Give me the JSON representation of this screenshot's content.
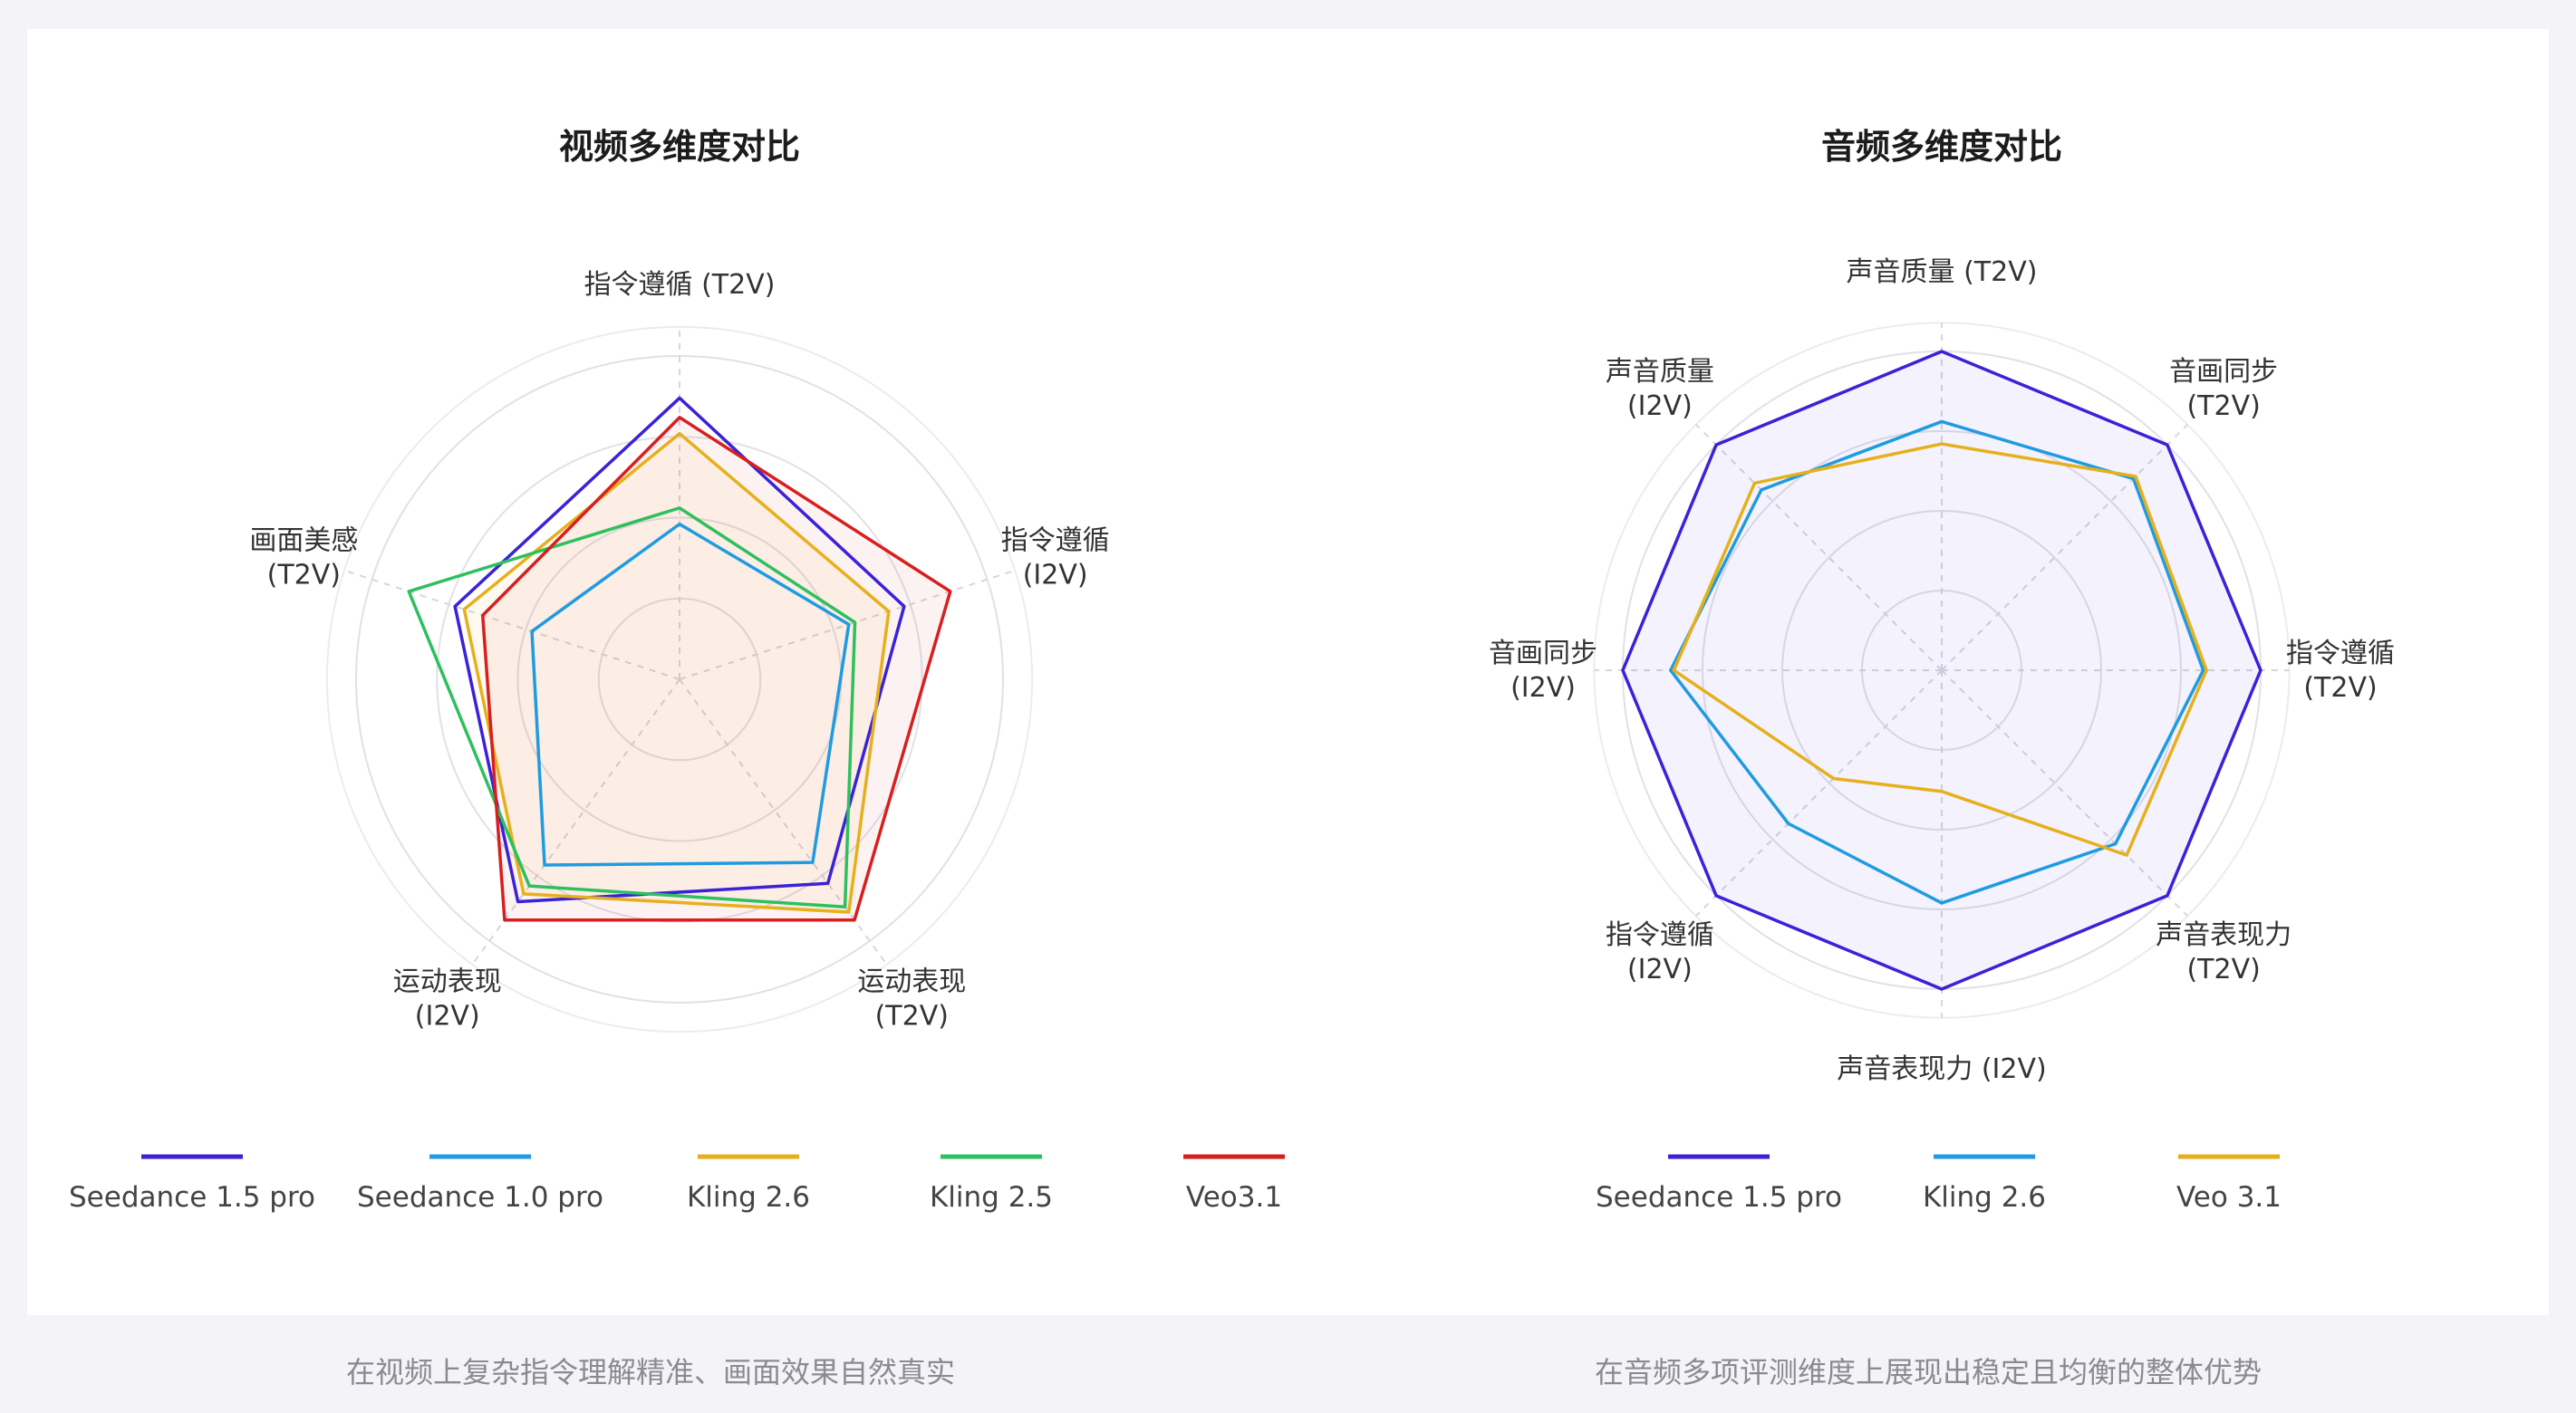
{
  "chart_data": [
    {
      "type": "radar",
      "title": "视频多维度对比",
      "axes": [
        "指令遵循 (T2V)",
        "指令遵循\n(I2V)",
        "运动表现\n(T2V)",
        "运动表现\n(I2V)",
        "画面美感\n(T2V)"
      ],
      "rmax": 1.0,
      "rings": [
        0.25,
        0.5,
        0.75,
        1.0
      ],
      "series": [
        {
          "name": "Seedance 1.5 pro",
          "color": "#3a22d6",
          "values": [
            0.87,
            0.73,
            0.78,
            0.85,
            0.73
          ]
        },
        {
          "name": "Seedance 1.0 pro",
          "color": "#1f9be0",
          "values": [
            0.48,
            0.55,
            0.7,
            0.71,
            0.48
          ]
        },
        {
          "name": "Kling 2.6",
          "color": "#e6b01c",
          "values": [
            0.76,
            0.68,
            0.89,
            0.82,
            0.7
          ]
        },
        {
          "name": "Kling 2.5",
          "color": "#2ec05e",
          "values": [
            0.53,
            0.57,
            0.87,
            0.79,
            0.88
          ]
        },
        {
          "name": "Veo3.1",
          "color": "#d81f1f",
          "values": [
            0.81,
            0.88,
            0.92,
            0.92,
            0.64
          ]
        }
      ],
      "fill_series": [
        "Veo3.1",
        "Kling 2.6"
      ],
      "legend_position": "bottom"
    },
    {
      "type": "radar",
      "title": "音频多维度对比",
      "axes": [
        "声音质量 (T2V)",
        "音画同步\n(T2V)",
        "指令遵循\n(T2V)",
        "声音表现力\n(T2V)",
        "声音表现力 (I2V)",
        "指令遵循\n(I2V)",
        "音画同步\n(I2V)",
        "声音质量\n(I2V)"
      ],
      "rmax": 1.0,
      "rings": [
        0.25,
        0.5,
        0.75,
        1.0
      ],
      "series": [
        {
          "name": "Seedance 1.5 pro",
          "color": "#3a22d6",
          "values": [
            1.0,
            1.0,
            1.0,
            1.0,
            1.0,
            1.0,
            1.0,
            1.0
          ]
        },
        {
          "name": "Kling 2.6",
          "color": "#1f9be0",
          "values": [
            0.78,
            0.85,
            0.82,
            0.77,
            0.73,
            0.68,
            0.85,
            0.8
          ]
        },
        {
          "name": "Veo 3.1",
          "color": "#e6b01c",
          "values": [
            0.71,
            0.86,
            0.83,
            0.82,
            0.38,
            0.48,
            0.84,
            0.83
          ]
        }
      ],
      "fill_series": [
        "Seedance 1.5 pro"
      ],
      "legend_position": "bottom"
    }
  ],
  "captions": {
    "left": "在视频上复杂指令理解精准、画面效果自然真实",
    "right": "在音频多项评测维度上展现出稳定且均衡的整体优势"
  }
}
